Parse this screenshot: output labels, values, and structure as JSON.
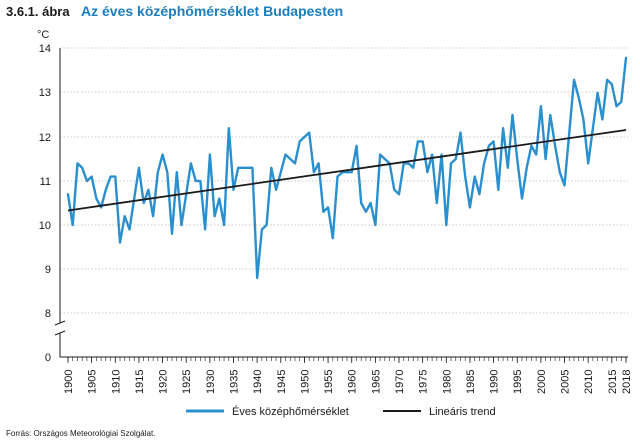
{
  "header": {
    "figure_number": "3.6.1. ábra",
    "title": "Az éves középhőmérséklet Budapesten"
  },
  "source": "Forrás: Országos Meteorológiai Szolgálat.",
  "colors": {
    "series": "#2a8fcf",
    "trend": "#1a1a1a",
    "title": "#1a7fc1"
  },
  "chart_data": {
    "type": "line",
    "title": "Az éves középhőmérséklet Budapesten",
    "ylabel": "°C",
    "xlabel": "",
    "ylim": [
      0,
      14
    ],
    "y_axis_break": "between 0 and 8",
    "y_ticks": [
      0,
      8,
      9,
      10,
      11,
      12,
      13,
      14
    ],
    "x_tick_labels": [
      "1900",
      "1905",
      "1910",
      "1915",
      "1920",
      "1925",
      "1930",
      "1935",
      "1940",
      "1945",
      "1950",
      "1955",
      "1960",
      "1965",
      "1970",
      "1975",
      "1980",
      "1985",
      "1990",
      "1995",
      "2000",
      "2005",
      "2010",
      "2015",
      "2018"
    ],
    "grid": "horizontal",
    "legend_position": "bottom",
    "series": [
      {
        "name": "Éves középhőmérséklet",
        "x": [
          1900,
          1901,
          1902,
          1903,
          1904,
          1905,
          1906,
          1907,
          1908,
          1909,
          1910,
          1911,
          1912,
          1913,
          1914,
          1915,
          1916,
          1917,
          1918,
          1919,
          1920,
          1921,
          1922,
          1923,
          1924,
          1925,
          1926,
          1927,
          1928,
          1929,
          1930,
          1931,
          1932,
          1933,
          1934,
          1935,
          1936,
          1937,
          1938,
          1939,
          1940,
          1941,
          1942,
          1943,
          1944,
          1945,
          1946,
          1947,
          1948,
          1949,
          1950,
          1951,
          1952,
          1953,
          1954,
          1955,
          1956,
          1957,
          1958,
          1959,
          1960,
          1961,
          1962,
          1963,
          1964,
          1965,
          1966,
          1967,
          1968,
          1969,
          1970,
          1971,
          1972,
          1973,
          1974,
          1975,
          1976,
          1977,
          1978,
          1979,
          1980,
          1981,
          1982,
          1983,
          1984,
          1985,
          1986,
          1987,
          1988,
          1989,
          1990,
          1991,
          1992,
          1993,
          1994,
          1995,
          1996,
          1997,
          1998,
          1999,
          2000,
          2001,
          2002,
          2003,
          2004,
          2005,
          2006,
          2007,
          2008,
          2009,
          2010,
          2011,
          2012,
          2013,
          2014,
          2015,
          2016,
          2017,
          2018
        ],
        "values": [
          10.7,
          10.0,
          11.4,
          11.3,
          11.0,
          11.1,
          10.6,
          10.4,
          10.8,
          11.1,
          11.1,
          9.6,
          10.2,
          9.9,
          10.6,
          11.3,
          10.5,
          10.8,
          10.2,
          11.2,
          11.6,
          11.2,
          9.8,
          11.2,
          10.0,
          10.7,
          11.4,
          11.0,
          11.0,
          9.9,
          11.6,
          10.2,
          10.6,
          10.0,
          12.2,
          10.8,
          11.3,
          11.3,
          11.3,
          11.3,
          8.8,
          9.9,
          10.0,
          11.3,
          10.8,
          11.2,
          11.6,
          11.5,
          11.4,
          11.9,
          12.0,
          12.1,
          11.2,
          11.4,
          10.3,
          10.4,
          9.7,
          11.1,
          11.2,
          11.2,
          11.2,
          11.8,
          10.5,
          10.3,
          10.5,
          10.0,
          11.6,
          11.5,
          11.4,
          10.8,
          10.7,
          11.4,
          11.4,
          11.3,
          11.9,
          11.9,
          11.2,
          11.6,
          10.5,
          11.6,
          10.0,
          11.4,
          11.5,
          12.1,
          11.1,
          10.4,
          11.1,
          10.7,
          11.4,
          11.8,
          11.9,
          10.8,
          12.2,
          11.3,
          12.5,
          11.5,
          10.6,
          11.3,
          11.8,
          11.6,
          12.7,
          11.5,
          12.5,
          11.8,
          11.2,
          10.9,
          12.1,
          13.3,
          12.9,
          12.4,
          11.4,
          12.2,
          13.0,
          12.4,
          13.3,
          13.2,
          12.7,
          12.8,
          13.8
        ]
      },
      {
        "name": "Lineáris trend",
        "x": [
          1900,
          2018
        ],
        "values": [
          10.33,
          12.16
        ]
      }
    ]
  }
}
